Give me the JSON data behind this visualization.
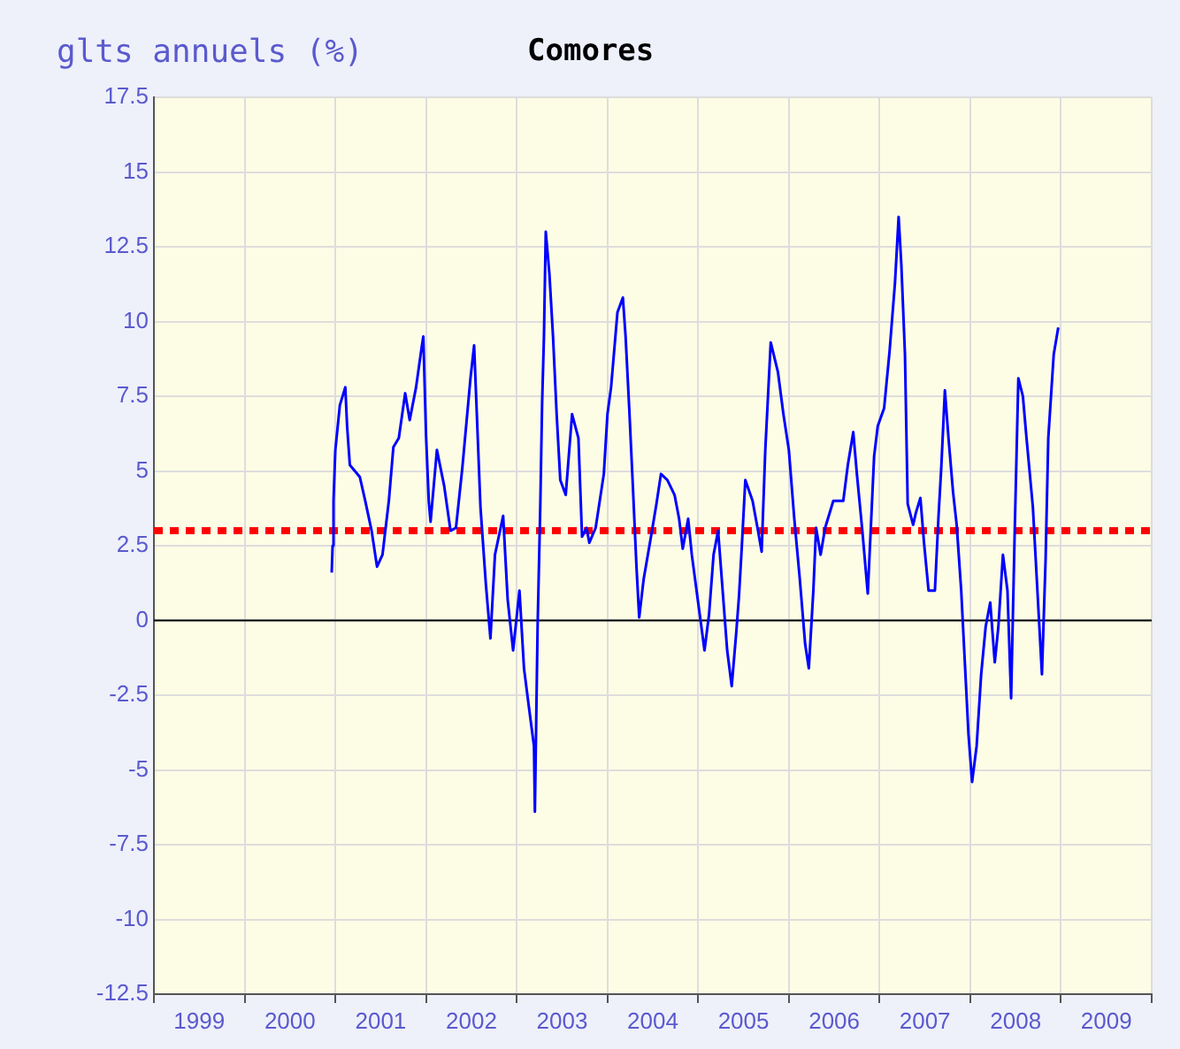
{
  "chart_data": {
    "type": "line",
    "title": "Comores",
    "ylabel": "glts annuels (%)",
    "x": [
      2000.96,
      2000.97,
      2000.98,
      2001.0,
      2001.05,
      2001.11,
      2001.13,
      2001.16,
      2001.27,
      2001.33,
      2001.4,
      2001.46,
      2001.52,
      2001.59,
      2001.64,
      2001.7,
      2001.77,
      2001.82,
      2001.89,
      2001.95,
      2001.97,
      2002.0,
      2002.03,
      2002.05,
      2002.12,
      2002.2,
      2002.27,
      2002.33,
      2002.4,
      2002.49,
      2002.53,
      2002.56,
      2002.6,
      2002.66,
      2002.71,
      2002.76,
      2002.85,
      2002.9,
      2002.96,
      2003.03,
      2003.08,
      2003.13,
      2003.19,
      2003.2,
      2003.23,
      2003.26,
      2003.28,
      2003.3,
      2003.32,
      2003.36,
      2003.4,
      2003.44,
      2003.48,
      2003.54,
      2003.61,
      2003.68,
      2003.72,
      2003.77,
      2003.8,
      2003.87,
      2003.96,
      2004.0,
      2004.04,
      2004.11,
      2004.17,
      2004.2,
      2004.24,
      2004.28,
      2004.32,
      2004.35,
      2004.4,
      2004.48,
      2004.54,
      2004.59,
      2004.66,
      2004.74,
      2004.79,
      2004.83,
      2004.89,
      2004.93,
      2005.0,
      2005.07,
      2005.12,
      2005.17,
      2005.22,
      2005.27,
      2005.32,
      2005.37,
      2005.42,
      2005.45,
      2005.48,
      2005.52,
      2005.6,
      2005.66,
      2005.7,
      2005.74,
      2005.8,
      2005.88,
      2005.94,
      2006.0,
      2006.06,
      2006.12,
      2006.18,
      2006.22,
      2006.27,
      2006.3,
      2006.35,
      2006.4,
      2006.49,
      2006.6,
      2006.65,
      2006.71,
      2006.75,
      2006.81,
      2006.87,
      2006.94,
      2006.98,
      2007.05,
      2007.11,
      2007.17,
      2007.21,
      2007.24,
      2007.28,
      2007.31,
      2007.37,
      2007.4,
      2007.45,
      2007.49,
      2007.54,
      2007.61,
      2007.65,
      2007.68,
      2007.72,
      2007.76,
      2007.81,
      2007.85,
      2007.9,
      2007.94,
      2007.98,
      2008.02,
      2008.07,
      2008.12,
      2008.17,
      2008.22,
      2008.27,
      2008.31,
      2008.36,
      2008.41,
      2008.45,
      2008.49,
      2008.53,
      2008.58,
      2008.62,
      2008.69,
      2008.74,
      2008.79,
      2008.83,
      2008.86,
      2008.92,
      2008.97
    ],
    "series": [
      {
        "color": "#0000ff",
        "values": [
          1.6,
          2.5,
          4.0,
          5.7,
          7.2,
          7.8,
          6.5,
          5.2,
          4.8,
          4.0,
          3.0,
          1.8,
          2.2,
          4.0,
          5.8,
          6.1,
          7.6,
          6.7,
          7.8,
          9.1,
          9.5,
          6.2,
          4.0,
          3.3,
          5.7,
          4.5,
          3.0,
          3.1,
          5.1,
          8.1,
          9.2,
          6.9,
          3.8,
          1.2,
          -0.6,
          2.2,
          3.5,
          0.7,
          -1.0,
          1.0,
          -1.6,
          -2.8,
          -4.2,
          -6.4,
          -0.2,
          3.9,
          7.3,
          9.5,
          13.0,
          11.6,
          9.5,
          6.9,
          4.7,
          4.2,
          6.9,
          6.1,
          2.8,
          3.1,
          2.6,
          3.1,
          4.9,
          6.9,
          7.8,
          10.3,
          10.8,
          9.5,
          7.1,
          4.5,
          1.8,
          0.1,
          1.4,
          2.8,
          3.9,
          4.9,
          4.7,
          4.2,
          3.4,
          2.4,
          3.4,
          2.2,
          0.6,
          -1.0,
          0.2,
          2.2,
          3.0,
          1.0,
          -1.0,
          -2.2,
          -0.4,
          0.8,
          2.4,
          4.7,
          4.0,
          3.0,
          2.3,
          5.7,
          9.3,
          8.3,
          6.9,
          5.7,
          3.4,
          1.4,
          -0.8,
          -1.6,
          1.0,
          3.1,
          2.2,
          3.1,
          4.0,
          4.0,
          5.2,
          6.3,
          4.9,
          3.0,
          0.9,
          5.5,
          6.5,
          7.1,
          9.0,
          11.3,
          13.5,
          11.9,
          8.9,
          3.9,
          3.2,
          3.6,
          4.1,
          2.6,
          1.0,
          1.0,
          3.5,
          5.1,
          7.7,
          6.1,
          4.3,
          3.2,
          1.0,
          -1.4,
          -3.8,
          -5.4,
          -4.2,
          -1.8,
          -0.2,
          0.6,
          -1.4,
          -0.2,
          2.2,
          1.0,
          -2.6,
          3.0,
          8.1,
          7.5,
          6.1,
          3.8,
          1.0,
          -1.8,
          2.0,
          6.1,
          8.9,
          9.8
        ]
      }
    ],
    "xlim": [
      1999,
      2010
    ],
    "xticks": [
      {
        "value": 1999.5,
        "label": "1999"
      },
      {
        "value": 2000.5,
        "label": "2000"
      },
      {
        "value": 2001.5,
        "label": "2001"
      },
      {
        "value": 2002.5,
        "label": "2002"
      },
      {
        "value": 2003.5,
        "label": "2003"
      },
      {
        "value": 2004.5,
        "label": "2004"
      },
      {
        "value": 2005.5,
        "label": "2005"
      },
      {
        "value": 2006.5,
        "label": "2006"
      },
      {
        "value": 2007.5,
        "label": "2007"
      },
      {
        "value": 2008.5,
        "label": "2008"
      },
      {
        "value": 2009.5,
        "label": "2009"
      }
    ],
    "ylim": [
      -12.5,
      17.5
    ],
    "yticks": [
      -12.5,
      -10,
      -7.5,
      -5,
      -2.5,
      0,
      2.5,
      5,
      7.5,
      10,
      12.5,
      15,
      17.5
    ],
    "ref_lines": [
      {
        "axis": "y",
        "value": 0,
        "color": "#000000",
        "line_style": "solid"
      },
      {
        "axis": "y",
        "value": 3,
        "color": "#ff0000",
        "line_style": "dotted"
      }
    ],
    "grid": true,
    "legend": false,
    "marker": "none",
    "line_style": "solid"
  }
}
